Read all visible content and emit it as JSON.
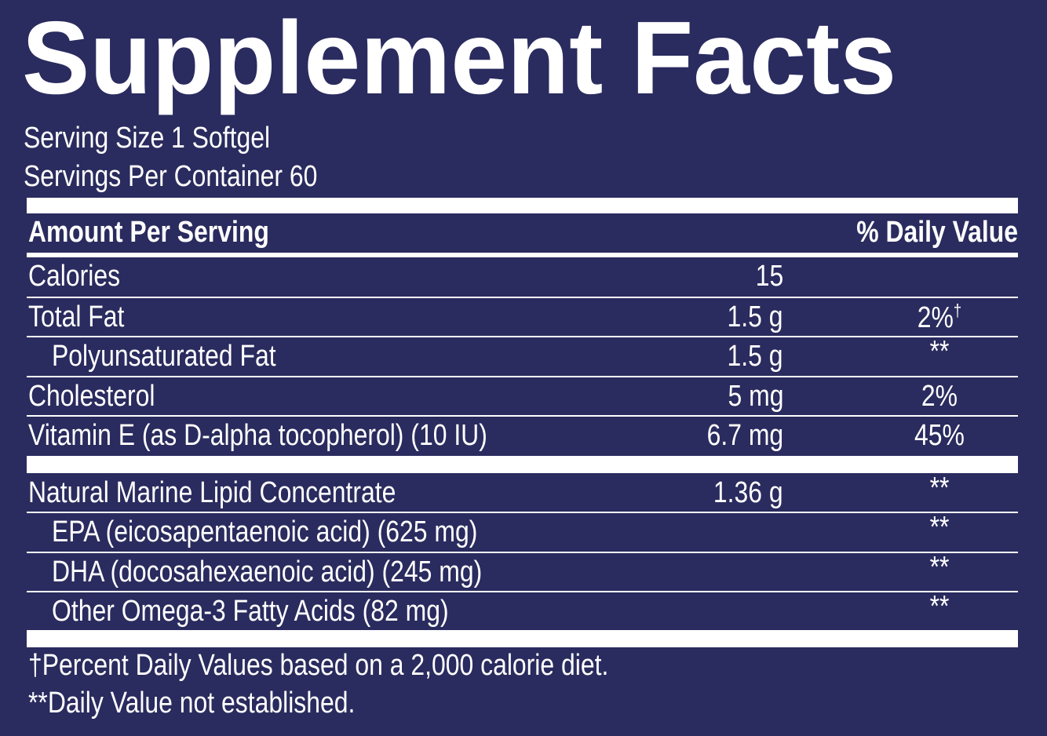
{
  "header": {
    "title": "Supplement Facts",
    "serving_size": "Serving Size 1 Softgel",
    "servings_per_container": "Servings Per Container 60"
  },
  "table": {
    "columns": [
      "Amount Per Serving",
      "% Daily Value"
    ],
    "sections": [
      {
        "rows": [
          {
            "label": "Calories",
            "amount": "15"
          },
          {
            "label": "Total Fat",
            "amount": "1.5 g",
            "dv": "2%",
            "dv_mark": "†"
          },
          {
            "label": "Polyunsaturated Fat",
            "amount": "1.5 g",
            "dv": "**",
            "indent": true
          },
          {
            "label": "Cholesterol",
            "amount": "5 mg",
            "dv": "2%"
          },
          {
            "label": "Vitamin E (as D-alpha tocopherol) (10 IU)",
            "amount": "6.7 mg",
            "dv": "45%"
          }
        ]
      },
      {
        "rows": [
          {
            "label": "Natural Marine Lipid Concentrate",
            "amount": "1.36 g",
            "dv": "**"
          },
          {
            "label": "EPA (eicosapentaenoic acid) (625 mg)",
            "dv": "**",
            "indent": true
          },
          {
            "label": "DHA (docosahexaenoic acid) (245 mg)",
            "dv": "**",
            "indent": true
          },
          {
            "label": "Other Omega-3 Fatty Acids (82 mg)",
            "dv": "**",
            "indent": true
          }
        ]
      }
    ]
  },
  "footnotes": [
    "†Percent Daily Values based on a 2,000 calorie diet.",
    "**Daily Value not established."
  ]
}
